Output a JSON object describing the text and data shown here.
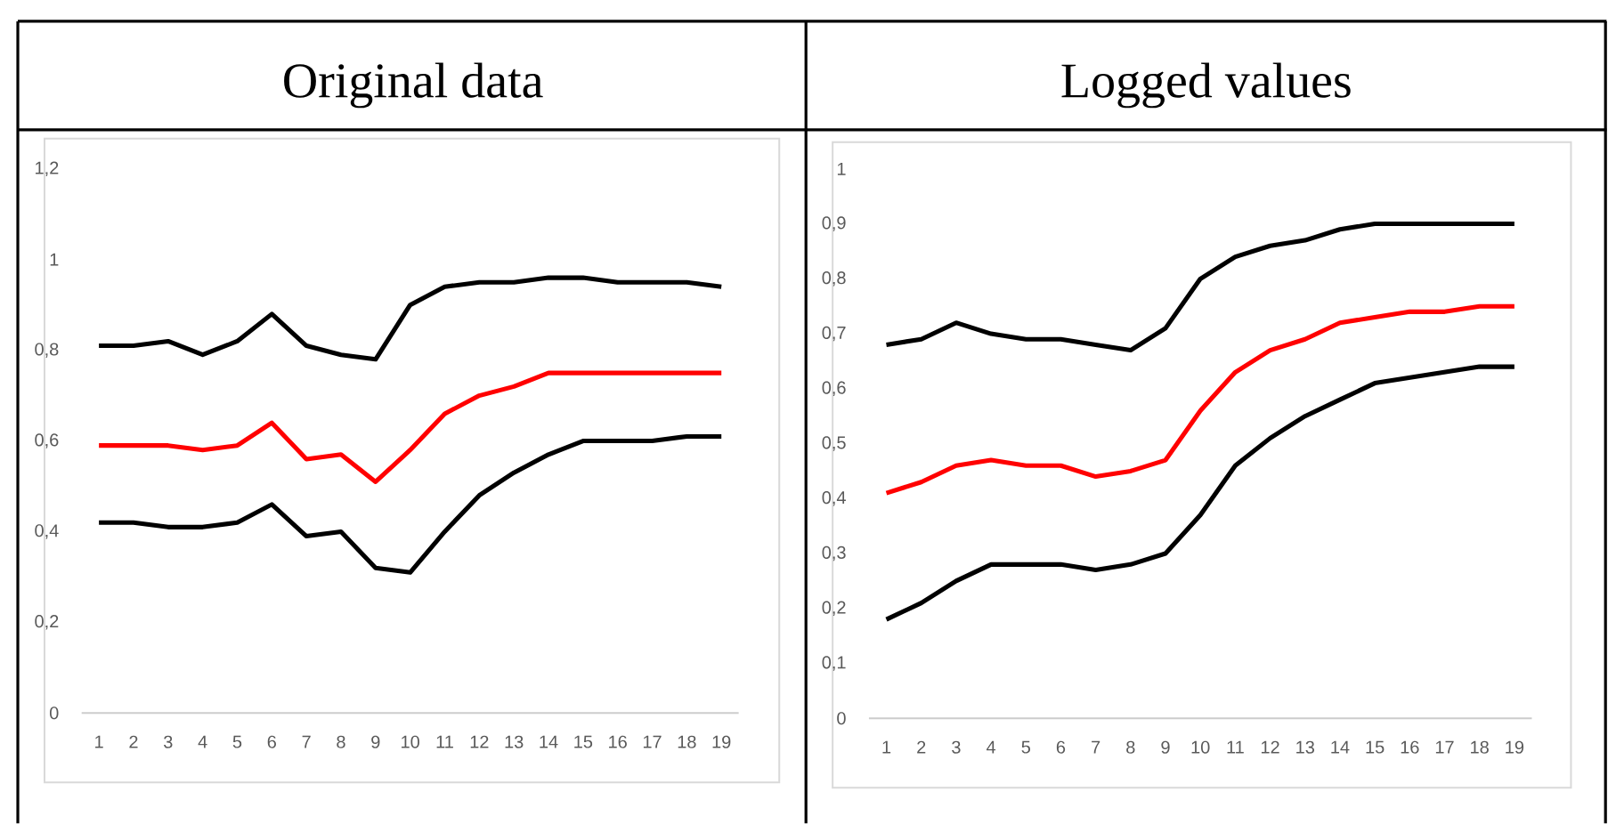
{
  "chart_data": [
    {
      "type": "line",
      "title": "Original data",
      "categories": [
        "1",
        "2",
        "3",
        "4",
        "5",
        "6",
        "7",
        "8",
        "9",
        "10",
        "11",
        "12",
        "13",
        "14",
        "15",
        "16",
        "17",
        "18",
        "19"
      ],
      "ylim": [
        0,
        1.2
      ],
      "yticks": [
        0,
        {
          "value": 0.2,
          "label": "0,2"
        },
        {
          "value": 0.4,
          "label": "0,4"
        },
        {
          "value": 0.6,
          "label": "0,6"
        },
        {
          "value": 0.8,
          "label": "0,8"
        },
        1,
        {
          "value": 1.2,
          "label": "1,2"
        }
      ],
      "series": [
        {
          "color": "#000000",
          "values": [
            0.81,
            0.81,
            0.82,
            0.79,
            0.82,
            0.88,
            0.81,
            0.79,
            0.78,
            0.9,
            0.94,
            0.95,
            0.95,
            0.96,
            0.96,
            0.95,
            0.95,
            0.95,
            0.94
          ]
        },
        {
          "color": "#ff0000",
          "values": [
            0.59,
            0.59,
            0.59,
            0.58,
            0.59,
            0.64,
            0.56,
            0.57,
            0.51,
            0.58,
            0.66,
            0.7,
            0.72,
            0.75,
            0.75,
            0.75,
            0.75,
            0.75,
            0.75
          ]
        },
        {
          "color": "#000000",
          "values": [
            0.42,
            0.42,
            0.41,
            0.41,
            0.42,
            0.46,
            0.39,
            0.4,
            0.32,
            0.31,
            0.4,
            0.48,
            0.53,
            0.57,
            0.6,
            0.6,
            0.6,
            0.61,
            0.61
          ]
        }
      ]
    },
    {
      "type": "line",
      "title": "Logged values",
      "categories": [
        "1",
        "2",
        "3",
        "4",
        "5",
        "6",
        "7",
        "8",
        "9",
        "10",
        "11",
        "12",
        "13",
        "14",
        "15",
        "16",
        "17",
        "18",
        "19"
      ],
      "ylim": [
        0,
        1
      ],
      "yticks": [
        0,
        {
          "value": 0.1,
          "label": "0,1"
        },
        {
          "value": 0.2,
          "label": "0,2"
        },
        {
          "value": 0.3,
          "label": "0,3"
        },
        {
          "value": 0.4,
          "label": "0,4"
        },
        {
          "value": 0.5,
          "label": "0,5"
        },
        {
          "value": 0.6,
          "label": "0,6"
        },
        {
          "value": 0.7,
          "label": "0,7"
        },
        {
          "value": 0.8,
          "label": "0,8"
        },
        {
          "value": 0.9,
          "label": "0,9"
        },
        1
      ],
      "series": [
        {
          "color": "#000000",
          "values": [
            0.68,
            0.69,
            0.72,
            0.7,
            0.69,
            0.69,
            0.68,
            0.67,
            0.71,
            0.8,
            0.84,
            0.86,
            0.87,
            0.89,
            0.9,
            0.9,
            0.9,
            0.9,
            0.9
          ]
        },
        {
          "color": "#ff0000",
          "values": [
            0.41,
            0.43,
            0.46,
            0.47,
            0.46,
            0.46,
            0.44,
            0.45,
            0.47,
            0.56,
            0.63,
            0.67,
            0.69,
            0.72,
            0.73,
            0.74,
            0.74,
            0.75,
            0.75
          ]
        },
        {
          "color": "#000000",
          "values": [
            0.18,
            0.21,
            0.25,
            0.28,
            0.28,
            0.28,
            0.27,
            0.28,
            0.3,
            0.37,
            0.46,
            0.51,
            0.55,
            0.58,
            0.61,
            0.62,
            0.63,
            0.64,
            0.64
          ]
        }
      ]
    }
  ]
}
